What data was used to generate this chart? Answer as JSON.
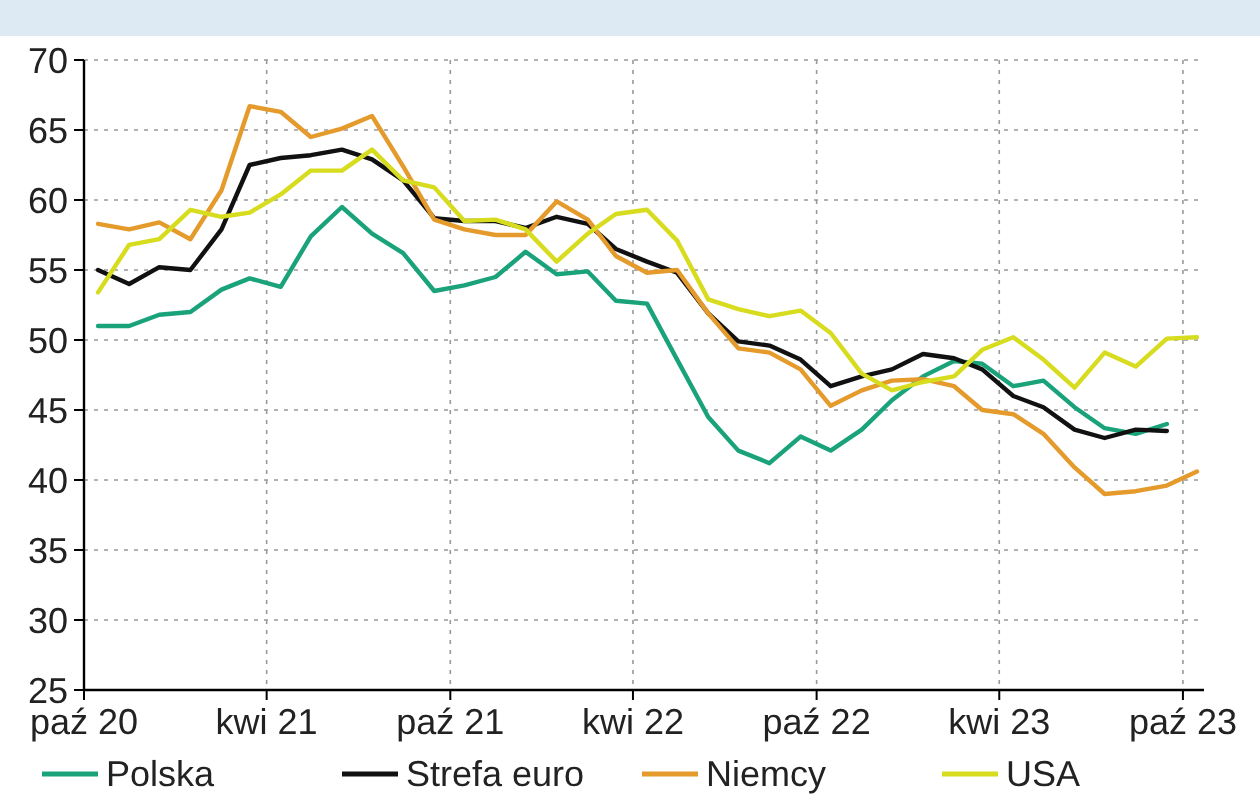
{
  "chart_data": {
    "type": "line",
    "x": [
      "2020-10-15",
      "2020-11-15",
      "2020-12-15",
      "2021-01-15",
      "2021-02-15",
      "2021-03-15",
      "2021-04-15",
      "2021-05-15",
      "2021-06-15",
      "2021-07-15",
      "2021-08-15",
      "2021-09-15",
      "2021-10-15",
      "2021-11-15",
      "2021-12-15",
      "2022-01-15",
      "2022-02-15",
      "2022-03-15",
      "2022-04-15",
      "2022-05-15",
      "2022-06-15",
      "2022-07-15",
      "2022-08-15",
      "2022-09-15",
      "2022-10-15",
      "2022-11-15",
      "2022-12-15",
      "2023-01-15",
      "2023-02-15",
      "2023-03-15",
      "2023-04-15",
      "2023-05-15",
      "2023-06-15",
      "2023-07-15",
      "2023-08-15",
      "2023-09-15",
      "2023-10-15"
    ],
    "series": [
      {
        "name": "Polska",
        "color": "#1aa37a",
        "values": [
          51,
          51,
          51.8,
          52,
          53.6,
          54.4,
          53.8,
          57.4,
          59.5,
          57.6,
          56.2,
          53.5,
          53.9,
          54.5,
          56.3,
          54.7,
          54.9,
          52.8,
          52.6,
          48.6,
          44.5,
          42.1,
          41.2,
          43.1,
          42.1,
          43.6,
          45.7,
          47.4,
          48.5,
          48.3,
          46.7,
          47.1,
          45.2,
          43.7,
          43.3,
          44,
          null
        ]
      },
      {
        "name": "Strefa euro",
        "color": "#111111",
        "values": [
          55,
          54,
          55.2,
          55,
          57.9,
          62.5,
          63,
          63.2,
          63.6,
          62.9,
          61.4,
          58.7,
          58.5,
          58.5,
          58,
          58.8,
          58.3,
          56.5,
          55.6,
          54.8,
          51.9,
          49.9,
          49.6,
          48.6,
          46.7,
          47.4,
          47.9,
          49,
          48.7,
          47.9,
          46,
          45.2,
          43.6,
          43,
          43.6,
          43.5,
          null
        ]
      },
      {
        "name": "Niemcy",
        "color": "#e59a2c",
        "values": [
          58.3,
          57.9,
          58.4,
          57.2,
          60.7,
          66.7,
          66.3,
          64.5,
          65.1,
          66,
          62.4,
          58.6,
          57.9,
          57.5,
          57.5,
          59.9,
          58.6,
          56,
          54.8,
          55,
          51.9,
          49.4,
          49.1,
          47.9,
          45.3,
          46.4,
          47.1,
          47.2,
          46.7,
          45,
          44.7,
          43.3,
          40.9,
          39,
          39.2,
          39.6,
          40.6
        ]
      },
      {
        "name": "USA",
        "color": "#d7dc1e",
        "values": [
          53.4,
          56.8,
          57.2,
          59.3,
          58.8,
          59.1,
          60.4,
          62.1,
          62.1,
          63.6,
          61.4,
          60.9,
          58.5,
          58.6,
          57.9,
          55.6,
          57.6,
          59,
          59.3,
          57.1,
          52.9,
          52.2,
          51.7,
          52.1,
          50.5,
          47.6,
          46.4,
          47,
          47.4,
          49.3,
          50.2,
          48.6,
          46.6,
          49.1,
          48.1,
          50.1,
          50.2
        ]
      }
    ],
    "xlim": [
      "2020-10-01",
      "2023-10-22"
    ],
    "xticks": [
      {
        "value": "2020-10-01",
        "label": "paź 20"
      },
      {
        "value": "2021-04-01",
        "label": "kwi 21"
      },
      {
        "value": "2021-10-01",
        "label": "paź 21"
      },
      {
        "value": "2022-04-01",
        "label": "kwi 22"
      },
      {
        "value": "2022-10-01",
        "label": "paź 22"
      },
      {
        "value": "2023-04-01",
        "label": "kwi 23"
      },
      {
        "value": "2023-10-01",
        "label": "paź 23"
      }
    ],
    "ylim": [
      25,
      70
    ],
    "yticks": [
      25,
      30,
      35,
      40,
      45,
      50,
      55,
      60,
      65,
      70
    ],
    "grid": true,
    "legend": "bottom",
    "line_style": "solid"
  }
}
